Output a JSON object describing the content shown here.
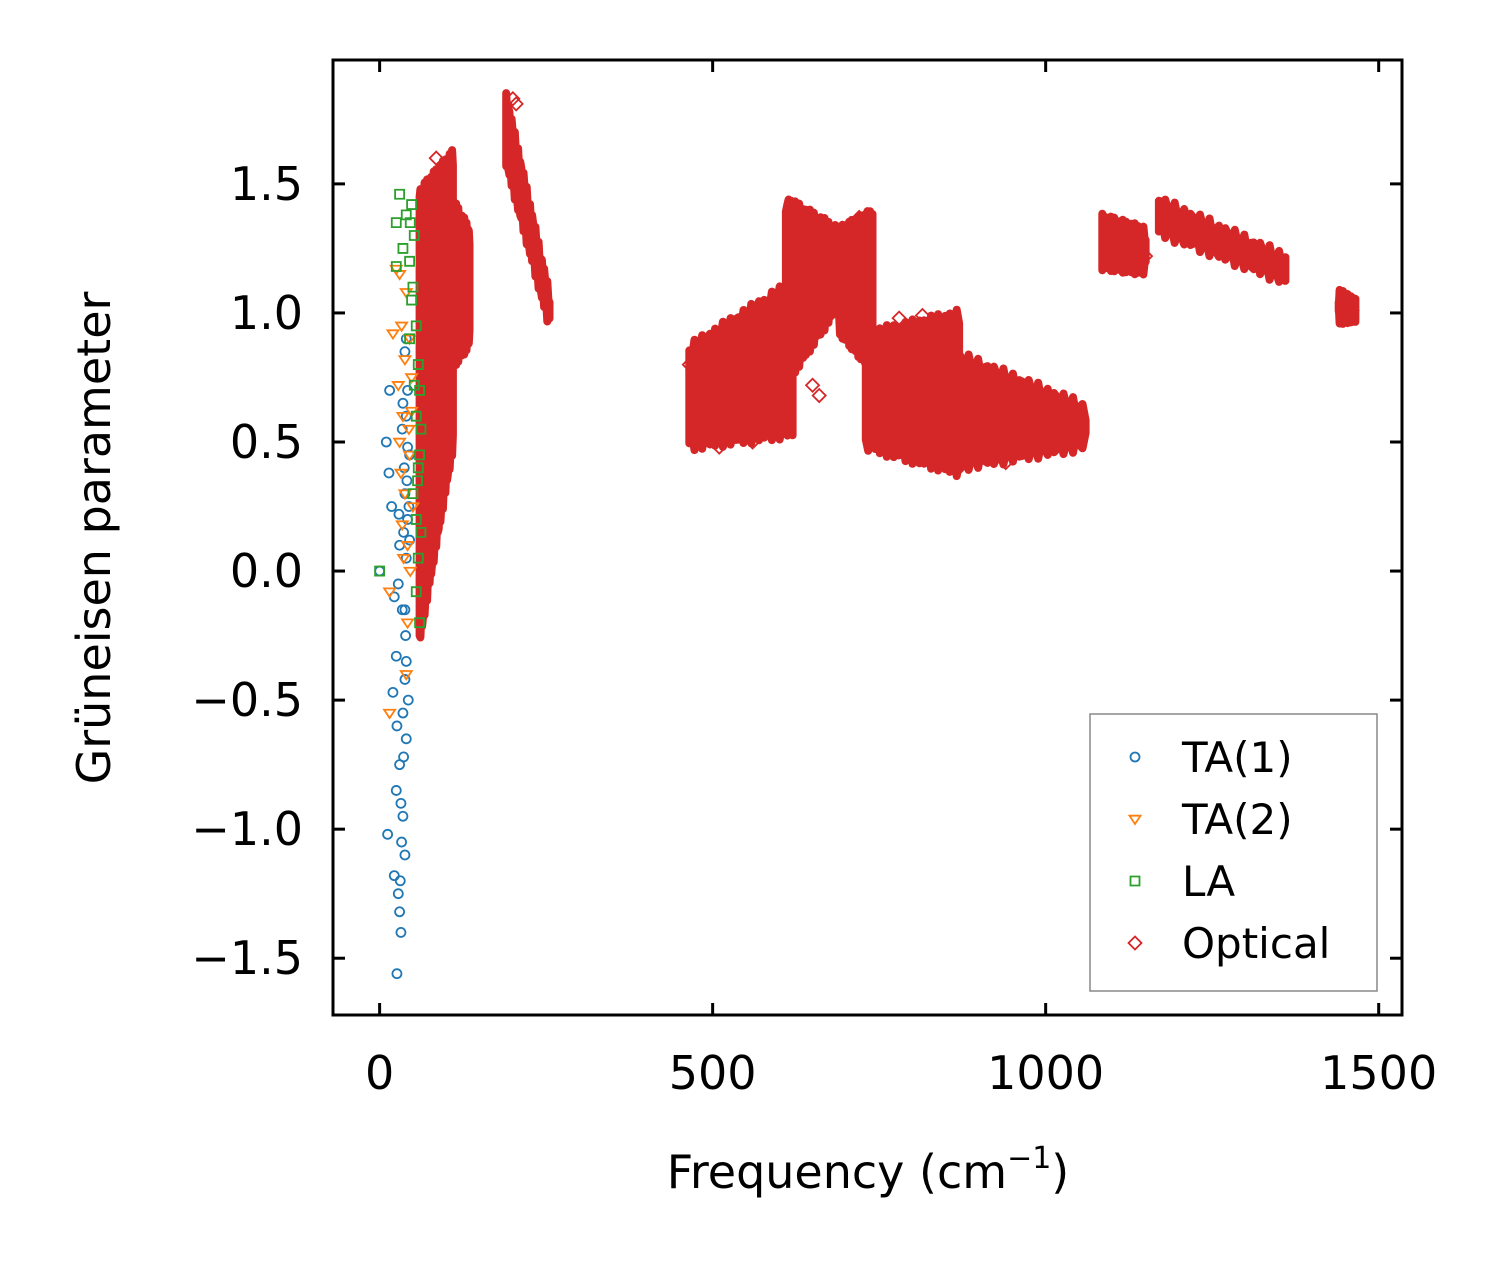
{
  "chart_data": {
    "type": "scatter",
    "title": "",
    "xlabel": "Frequency (cm",
    "xlabel_sup": "−1",
    "xlabel_end": ")",
    "ylabel": "Grüneisen parameter",
    "xlim": [
      -70,
      1535
    ],
    "ylim": [
      -1.72,
      1.98
    ],
    "x_ticks": [
      0,
      500,
      1000,
      1500
    ],
    "x_tick_labels": [
      "0",
      "500",
      "1000",
      "1500"
    ],
    "y_ticks": [
      -1.5,
      -1.0,
      -0.5,
      0.0,
      0.5,
      1.0,
      1.5
    ],
    "y_tick_labels": [
      "−1.5",
      "−1.0",
      "−0.5",
      "0.0",
      "0.5",
      "1.0",
      "1.5"
    ],
    "grid": false,
    "legend_position": "lower-right",
    "series": [
      {
        "name": "TA(1)",
        "marker": "circle",
        "color": "#1f77b4",
        "points": [
          [
            0,
            0
          ],
          [
            12,
            -1.02
          ],
          [
            15,
            0.7
          ],
          [
            10,
            0.5
          ],
          [
            14,
            0.38
          ],
          [
            18,
            0.25
          ],
          [
            22,
            -0.1
          ],
          [
            25,
            -0.33
          ],
          [
            20,
            -0.47
          ],
          [
            25,
            -0.85
          ],
          [
            22,
            -1.18
          ],
          [
            28,
            -1.25
          ],
          [
            30,
            -1.32
          ],
          [
            32,
            -1.4
          ],
          [
            26,
            -1.56
          ],
          [
            30,
            -0.75
          ],
          [
            35,
            -0.55
          ],
          [
            38,
            -0.15
          ],
          [
            40,
            0.05
          ],
          [
            42,
            0.2
          ],
          [
            38,
            0.3
          ],
          [
            45,
            0.45
          ],
          [
            40,
            0.6
          ],
          [
            42,
            0.7
          ],
          [
            38,
            0.85
          ],
          [
            35,
            -0.95
          ],
          [
            33,
            -1.05
          ],
          [
            38,
            -1.1
          ],
          [
            40,
            -0.65
          ],
          [
            43,
            -0.5
          ],
          [
            36,
            0.15
          ],
          [
            39,
            -0.25
          ],
          [
            41,
            0.35
          ],
          [
            34,
            0.55
          ],
          [
            30,
            0.1
          ],
          [
            28,
            -0.05
          ],
          [
            26,
            -0.6
          ],
          [
            32,
            -0.9
          ],
          [
            37,
            0.4
          ],
          [
            44,
            0.25
          ],
          [
            40,
            -0.35
          ],
          [
            36,
            -0.72
          ],
          [
            31,
            -1.2
          ],
          [
            29,
            0.22
          ],
          [
            34,
            -0.15
          ],
          [
            42,
            0.48
          ],
          [
            45,
            0.12
          ],
          [
            38,
            -0.42
          ],
          [
            35,
            0.65
          ],
          [
            40,
            0.9
          ]
        ]
      },
      {
        "name": "TA(2)",
        "marker": "triangle-down",
        "color": "#ff7f0e",
        "points": [
          [
            15,
            -0.55
          ],
          [
            15,
            -0.08
          ],
          [
            20,
            0.92
          ],
          [
            25,
            1.17
          ],
          [
            30,
            1.15
          ],
          [
            35,
            0.6
          ],
          [
            38,
            0.3
          ],
          [
            40,
            -0.4
          ],
          [
            42,
            0.1
          ],
          [
            45,
            0.45
          ],
          [
            48,
            0.75
          ],
          [
            36,
            0.05
          ],
          [
            33,
            0.95
          ],
          [
            28,
            0.72
          ],
          [
            40,
            1.08
          ],
          [
            44,
            0.55
          ],
          [
            50,
            0.25
          ],
          [
            46,
            0.0
          ],
          [
            38,
            0.82
          ],
          [
            32,
            0.38
          ],
          [
            42,
            -0.2
          ],
          [
            48,
            0.62
          ],
          [
            34,
            0.18
          ],
          [
            30,
            0.5
          ],
          [
            45,
            0.9
          ]
        ]
      },
      {
        "name": "LA",
        "marker": "square",
        "color": "#2ca02c",
        "points": [
          [
            0,
            0
          ],
          [
            30,
            1.46
          ],
          [
            40,
            1.38
          ],
          [
            48,
            1.42
          ],
          [
            52,
            1.3
          ],
          [
            45,
            1.2
          ],
          [
            50,
            1.1
          ],
          [
            55,
            0.95
          ],
          [
            58,
            0.8
          ],
          [
            60,
            0.7
          ],
          [
            62,
            0.55
          ],
          [
            58,
            0.4
          ],
          [
            55,
            0.2
          ],
          [
            58,
            0.05
          ],
          [
            55,
            -0.08
          ],
          [
            60,
            -0.2
          ],
          [
            50,
            0.3
          ],
          [
            45,
            0.9
          ],
          [
            48,
            1.05
          ],
          [
            25,
            1.35
          ],
          [
            25,
            1.18
          ],
          [
            35,
            1.25
          ],
          [
            55,
            0.6
          ],
          [
            60,
            0.45
          ],
          [
            52,
            0.72
          ],
          [
            57,
            0.35
          ],
          [
            62,
            0.15
          ],
          [
            46,
            1.35
          ]
        ]
      },
      {
        "name": "Optical",
        "marker": "diamond",
        "color": "#d62728",
        "bands": [
          {
            "x": [
              60,
              110
            ],
            "y_low": [
              -0.25,
              0.5
            ],
            "y_high": [
              1.45,
              1.6
            ]
          },
          {
            "x": [
              90,
              135
            ],
            "y_low": [
              0.75,
              0.9
            ],
            "y_high": [
              1.5,
              1.3
            ]
          },
          {
            "x": [
              190,
              255
            ],
            "y_low": [
              1.6,
              0.97
            ],
            "y_high": [
              1.82,
              1.05
            ]
          },
          {
            "x": [
              465,
              620
            ],
            "y_low": [
              0.5,
              0.55
            ],
            "y_high": [
              0.85,
              1.1
            ]
          },
          {
            "x": [
              610,
              690
            ],
            "y_low": [
              0.75,
              1.05
            ],
            "y_high": [
              1.42,
              1.3
            ]
          },
          {
            "x": [
              690,
              740
            ],
            "y_low": [
              0.95,
              0.8
            ],
            "y_high": [
              1.3,
              1.37
            ]
          },
          {
            "x": [
              730,
              870
            ],
            "y_low": [
              0.5,
              0.4
            ],
            "y_high": [
              0.9,
              0.98
            ]
          },
          {
            "x": [
              870,
              1060
            ],
            "y_low": [
              0.42,
              0.5
            ],
            "y_high": [
              0.82,
              0.62
            ]
          },
          {
            "x": [
              1085,
              1150
            ],
            "y_low": [
              1.2,
              1.18
            ],
            "y_high": [
              1.35,
              1.3
            ]
          },
          {
            "x": [
              1170,
              1360
            ],
            "y_low": [
              1.33,
              1.14
            ],
            "y_high": [
              1.42,
              1.2
            ]
          },
          {
            "x": [
              1440,
              1465
            ],
            "y_low": [
              0.99,
              1.0
            ],
            "y_high": [
              1.06,
              1.02
            ]
          }
        ],
        "points": [
          [
            85,
            1.6
          ],
          [
            90,
            1.55
          ],
          [
            75,
            1.5
          ],
          [
            70,
            1.45
          ],
          [
            200,
            1.83
          ],
          [
            205,
            1.81
          ],
          [
            720,
            1.37
          ],
          [
            730,
            1.35
          ],
          [
            620,
            1.42
          ],
          [
            870,
            0.4
          ],
          [
            815,
            0.99
          ],
          [
            780,
            0.98
          ],
          [
            590,
            0.55
          ],
          [
            560,
            0.5
          ],
          [
            510,
            0.48
          ],
          [
            650,
            0.72
          ],
          [
            1115,
            1.3
          ],
          [
            1150,
            1.22
          ],
          [
            1145,
            1.2
          ],
          [
            1180,
            1.4
          ],
          [
            1290,
            1.25
          ],
          [
            1450,
            1.02
          ],
          [
            1460,
            1.01
          ],
          [
            465,
            0.8
          ],
          [
            940,
            0.42
          ],
          [
            1050,
            0.55
          ],
          [
            660,
            0.68
          ],
          [
            820,
            0.7
          ]
        ]
      }
    ]
  }
}
